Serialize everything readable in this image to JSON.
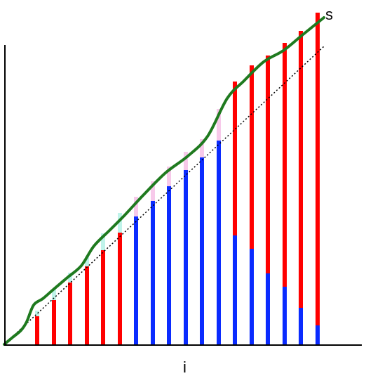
{
  "labels": {
    "x": "i",
    "curve": "s"
  },
  "colors": {
    "axis": "#000000",
    "curve": "#1f7a1f",
    "red": "#ff0000",
    "blue": "#0a2bff",
    "cyan": "#bff3ea",
    "pink": "#f7c9ea",
    "diagonal": "#000000"
  },
  "bars": [
    {
      "blue": 0,
      "red": 40,
      "light": 8,
      "lightColor": "cyan"
    },
    {
      "blue": 0,
      "red": 63,
      "light": 16,
      "lightColor": "cyan"
    },
    {
      "blue": 0,
      "red": 88,
      "light": 14,
      "lightColor": "cyan"
    },
    {
      "blue": 0,
      "red": 111,
      "light": 14,
      "lightColor": "cyan"
    },
    {
      "blue": 0,
      "red": 134,
      "light": 24,
      "lightColor": "cyan"
    },
    {
      "blue": 0,
      "red": 159,
      "light": 28,
      "lightColor": "cyan"
    },
    {
      "blue": 182,
      "red": 0,
      "light": 28,
      "lightColor": "pink"
    },
    {
      "blue": 204,
      "red": 0,
      "light": 28,
      "lightColor": "pink"
    },
    {
      "blue": 225,
      "red": 0,
      "light": 28,
      "lightColor": "pink"
    },
    {
      "blue": 248,
      "red": 0,
      "light": 26,
      "lightColor": "pink"
    },
    {
      "blue": 266,
      "red": 0,
      "light": 26,
      "lightColor": "pink"
    },
    {
      "blue": 290,
      "red": 0,
      "light": 45,
      "lightColor": "pink"
    },
    {
      "blue": 155,
      "red": 219,
      "light": 0,
      "lightColor": "pink"
    },
    {
      "blue": 136,
      "red": 261,
      "light": 0,
      "lightColor": "pink"
    },
    {
      "blue": 101,
      "red": 310,
      "light": 0,
      "lightColor": "pink"
    },
    {
      "blue": 82,
      "red": 347,
      "light": 0,
      "lightColor": "pink"
    },
    {
      "blue": 52,
      "red": 394,
      "light": 0,
      "lightColor": "pink"
    },
    {
      "blue": 27,
      "red": 445,
      "light": 0,
      "lightColor": "pink"
    }
  ],
  "curve": [
    [
      0,
      0
    ],
    [
      12,
      10
    ],
    [
      24,
      20
    ],
    [
      32,
      32
    ],
    [
      42,
      56
    ],
    [
      55,
      65
    ],
    [
      70,
      78
    ],
    [
      90,
      95
    ],
    [
      110,
      112
    ],
    [
      128,
      140
    ],
    [
      150,
      162
    ],
    [
      172,
      184
    ],
    [
      198,
      212
    ],
    [
      230,
      244
    ],
    [
      262,
      268
    ],
    [
      290,
      296
    ],
    [
      318,
      350
    ],
    [
      342,
      375
    ],
    [
      370,
      402
    ],
    [
      398,
      418
    ],
    [
      425,
      440
    ],
    [
      456,
      465
    ]
  ]
}
